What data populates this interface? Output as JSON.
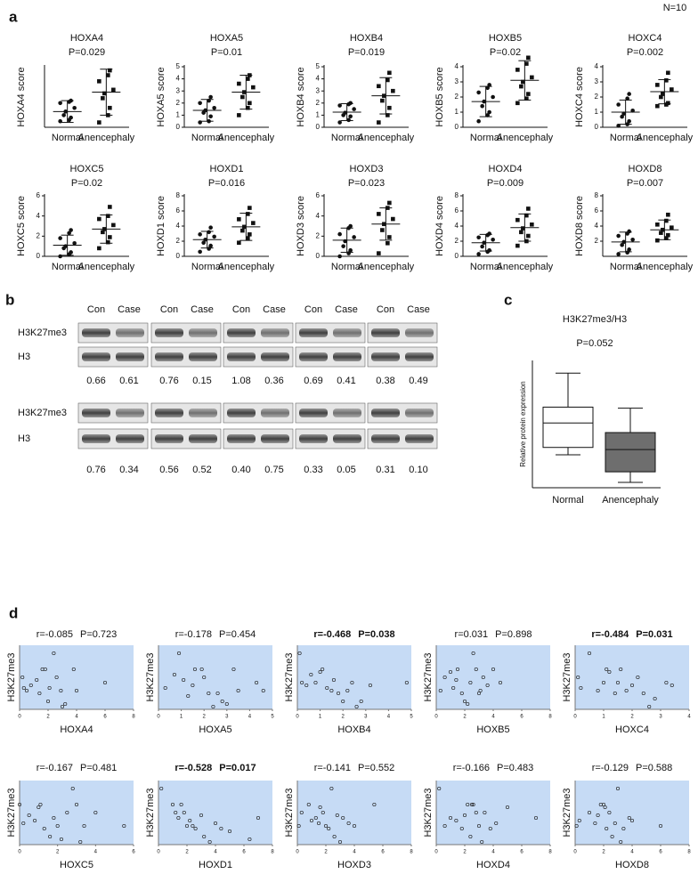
{
  "figure_note": "N=10",
  "panel_labels": [
    "a",
    "b",
    "c",
    "d"
  ],
  "blot": {
    "lane_labels": [
      "Con",
      "Case"
    ],
    "row_labels": [
      "H3K27me3",
      "H3"
    ],
    "rows": [
      [
        "0.66",
        "0.61",
        "0.76",
        "0.15",
        "1.08",
        "0.36",
        "0.69",
        "0.41",
        "0.38",
        "0.49"
      ],
      [
        "0.76",
        "0.34",
        "0.56",
        "0.52",
        "0.40",
        "0.75",
        "0.33",
        "0.05",
        "0.31",
        "0.10"
      ]
    ]
  },
  "chart_data": [
    {
      "type": "dot",
      "title": "HOXA4",
      "subtitle": "P=0.029",
      "y_label": "HOXA4 score",
      "categories": [
        "Normal",
        "Anencephaly"
      ],
      "ylim": [
        0,
        5
      ],
      "markers": [
        "circle",
        "square"
      ],
      "color": "#111111",
      "values": [
        [
          0.5,
          0.6,
          0.8,
          1.0,
          1.3,
          1.6,
          2.0,
          2.1,
          2.2
        ],
        [
          0.4,
          1.0,
          1.6,
          2.4,
          2.8,
          3.1,
          3.8,
          4.3,
          4.7
        ]
      ],
      "means": [
        1.3,
        2.9
      ],
      "sds": [
        0.9,
        1.9
      ]
    },
    {
      "type": "dot",
      "title": "HOXA5",
      "subtitle": "P=0.01",
      "y_label": "HOXA5 score",
      "categories": [
        "Normal",
        "Anencephaly"
      ],
      "ylim": [
        0,
        5
      ],
      "yticks": [
        0,
        1,
        2,
        3,
        4,
        5
      ],
      "markers": [
        "circle",
        "square"
      ],
      "color": "#111111",
      "values": [
        [
          0.4,
          0.5,
          0.9,
          1.2,
          1.4,
          1.6,
          2.0,
          2.2,
          2.5
        ],
        [
          1.0,
          1.6,
          2.0,
          2.5,
          2.9,
          3.3,
          3.6,
          4.0,
          4.3
        ]
      ],
      "means": [
        1.4,
        2.9
      ],
      "sds": [
        0.9,
        1.4
      ]
    },
    {
      "type": "dot",
      "title": "HOXB4",
      "subtitle": "P=0.019",
      "y_label": "HOXB4 score",
      "categories": [
        "Normal",
        "Anencephaly"
      ],
      "ylim": [
        0,
        5
      ],
      "yticks": [
        0,
        1,
        2,
        3,
        4,
        5
      ],
      "markers": [
        "circle",
        "square"
      ],
      "color": "#111111",
      "values": [
        [
          0.4,
          0.6,
          0.9,
          1.0,
          1.2,
          1.5,
          1.8,
          1.9,
          2.0
        ],
        [
          0.4,
          1.0,
          1.6,
          2.2,
          2.6,
          3.0,
          3.4,
          3.9,
          4.5
        ]
      ],
      "means": [
        1.25,
        2.6
      ],
      "sds": [
        0.7,
        1.5
      ]
    },
    {
      "type": "dot",
      "title": "HOXB5",
      "subtitle": "P=0.02",
      "y_label": "HOXB5 score",
      "categories": [
        "Normal",
        "Anencephaly"
      ],
      "ylim": [
        0,
        4
      ],
      "yticks": [
        0,
        1,
        2,
        3,
        4
      ],
      "markers": [
        "circle",
        "square"
      ],
      "color": "#111111",
      "values": [
        [
          0.4,
          0.8,
          1.0,
          1.4,
          1.7,
          2.0,
          2.3,
          2.6,
          2.8
        ],
        [
          1.6,
          1.9,
          2.2,
          2.7,
          3.0,
          3.3,
          3.8,
          4.2,
          4.6
        ]
      ],
      "means": [
        1.7,
        3.1
      ],
      "sds": [
        1.0,
        1.3
      ]
    },
    {
      "type": "dot",
      "title": "HOXC4",
      "subtitle": "P=0.002",
      "y_label": "HOXC4 score",
      "categories": [
        "Normal",
        "Anencephaly"
      ],
      "ylim": [
        0,
        4
      ],
      "yticks": [
        0,
        1,
        2,
        3,
        4
      ],
      "markers": [
        "circle",
        "square"
      ],
      "color": "#111111",
      "values": [
        [
          0.1,
          0.2,
          0.4,
          0.7,
          0.9,
          1.1,
          1.5,
          1.9,
          2.2
        ],
        [
          1.4,
          1.5,
          1.6,
          2.0,
          2.2,
          2.5,
          2.8,
          3.1,
          3.6
        ]
      ],
      "means": [
        1.0,
        2.35
      ],
      "sds": [
        0.8,
        0.8
      ]
    },
    {
      "type": "dot",
      "title": "HOXC5",
      "subtitle": "P=0.02",
      "y_label": "HOXC5 score",
      "categories": [
        "Normal",
        "Anencephaly"
      ],
      "ylim": [
        0,
        6
      ],
      "yticks": [
        0,
        2,
        4,
        6
      ],
      "markers": [
        "circle",
        "square"
      ],
      "color": "#111111",
      "values": [
        [
          0.0,
          0.2,
          0.4,
          0.8,
          1.0,
          1.3,
          1.8,
          2.3,
          2.6
        ],
        [
          0.8,
          1.4,
          1.9,
          2.4,
          2.7,
          3.1,
          3.7,
          4.0,
          4.9
        ]
      ],
      "means": [
        1.1,
        2.7
      ],
      "sds": [
        1.0,
        1.4
      ]
    },
    {
      "type": "dot",
      "title": "HOXD1",
      "subtitle": "P=0.016",
      "y_label": "HOXD1 score",
      "categories": [
        "Normal",
        "Anencephaly"
      ],
      "ylim": [
        0,
        8
      ],
      "yticks": [
        0,
        2,
        4,
        6,
        8
      ],
      "markers": [
        "circle",
        "square"
      ],
      "color": "#111111",
      "values": [
        [
          0.6,
          1.0,
          1.4,
          1.8,
          2.2,
          2.6,
          2.9,
          3.2,
          3.8
        ],
        [
          1.8,
          2.4,
          2.9,
          3.4,
          3.9,
          4.4,
          4.9,
          5.6,
          6.4
        ]
      ],
      "means": [
        2.2,
        3.9
      ],
      "sds": [
        1.1,
        1.8
      ]
    },
    {
      "type": "dot",
      "title": "HOXD3",
      "subtitle": "P=0.023",
      "y_label": "HOXD3 score",
      "categories": [
        "Normal",
        "Anencephaly"
      ],
      "ylim": [
        0,
        6
      ],
      "yticks": [
        0,
        2,
        4,
        6
      ],
      "markers": [
        "circle",
        "square"
      ],
      "color": "#111111",
      "values": [
        [
          0.0,
          0.3,
          0.6,
          1.0,
          1.5,
          1.9,
          2.2,
          2.8,
          3.0
        ],
        [
          0.3,
          1.3,
          1.9,
          2.6,
          3.2,
          3.7,
          4.2,
          4.8,
          5.3
        ]
      ],
      "means": [
        1.6,
        3.2
      ],
      "sds": [
        1.2,
        1.6
      ]
    },
    {
      "type": "dot",
      "title": "HOXD4",
      "subtitle": "P=0.009",
      "y_label": "HOXD4 score",
      "categories": [
        "Normal",
        "Anencephaly"
      ],
      "ylim": [
        0,
        8
      ],
      "yticks": [
        0,
        2,
        4,
        6,
        8
      ],
      "markers": [
        "circle",
        "square"
      ],
      "color": "#111111",
      "values": [
        [
          0.3,
          0.6,
          0.8,
          1.3,
          1.8,
          2.2,
          2.5,
          2.8,
          3.0
        ],
        [
          1.4,
          2.0,
          2.7,
          3.2,
          3.7,
          4.2,
          4.8,
          5.4,
          6.3
        ]
      ],
      "means": [
        1.8,
        3.8
      ],
      "sds": [
        1.1,
        1.8
      ]
    },
    {
      "type": "dot",
      "title": "HOXD8",
      "subtitle": "P=0.007",
      "y_label": "HOXD8 score",
      "categories": [
        "Normal",
        "Anencephaly"
      ],
      "ylim": [
        0,
        8
      ],
      "yticks": [
        2,
        4,
        6,
        8
      ],
      "markers": [
        "circle",
        "square"
      ],
      "color": "#111111",
      "values": [
        [
          0.3,
          0.5,
          0.9,
          1.5,
          1.9,
          2.2,
          2.7,
          3.0,
          3.3
        ],
        [
          2.1,
          2.4,
          2.8,
          3.1,
          3.5,
          3.8,
          4.2,
          4.7,
          5.5
        ]
      ],
      "means": [
        1.9,
        3.5
      ],
      "sds": [
        1.3,
        1.3
      ]
    },
    {
      "type": "box",
      "title": "H3K27me3/H3",
      "subtitle": "P=0.052",
      "y_label": "Relative protein expression",
      "categories": [
        "Normal",
        "Anencephaly"
      ],
      "ylim": [
        0,
        1.2
      ],
      "colors": [
        "#ffffff",
        "#6e6e6e"
      ],
      "min": [
        0.31,
        0.05
      ],
      "q1": [
        0.38,
        0.15
      ],
      "median": [
        0.61,
        0.36
      ],
      "q3": [
        0.76,
        0.52
      ],
      "max": [
        1.08,
        0.75
      ]
    },
    {
      "type": "scatter",
      "r_label": "r=-0.085",
      "p_label": "P=0.723",
      "bold": false,
      "x_label": "HOXA4",
      "y_label": "H3K27me3",
      "xlim": [
        0,
        8
      ],
      "xticks": [
        0,
        2,
        4,
        6,
        8
      ],
      "ylim": [
        0,
        1.2
      ],
      "background": "#c6dbf5",
      "x": [
        0.2,
        0.3,
        0.5,
        0.8,
        1.2,
        1.6,
        1.8,
        2.0,
        2.1,
        2.4,
        2.6,
        3.0,
        3.2,
        3.8,
        4.0,
        6.0,
        1.4,
        2.9
      ],
      "values": [
        0.6,
        0.4,
        0.35,
        0.45,
        0.55,
        0.75,
        0.75,
        0.15,
        0.4,
        1.05,
        0.6,
        0.05,
        0.1,
        0.75,
        0.35,
        0.5,
        0.3,
        0.35
      ]
    },
    {
      "type": "scatter",
      "r_label": "r=-0.178",
      "p_label": "P=0.454",
      "bold": false,
      "x_label": "HOXA5",
      "y_label": "H3K27me3",
      "xlim": [
        0,
        5
      ],
      "xticks": [
        0,
        1,
        2,
        3,
        4,
        5
      ],
      "ylim": [
        0,
        1.2
      ],
      "background": "#c6dbf5",
      "x": [
        0.3,
        0.7,
        0.9,
        1.1,
        1.3,
        1.5,
        1.6,
        1.9,
        2.0,
        2.2,
        2.4,
        2.6,
        2.8,
        3.0,
        3.3,
        3.5,
        4.3,
        4.6
      ],
      "values": [
        0.4,
        0.65,
        1.05,
        0.55,
        0.25,
        0.45,
        0.75,
        0.75,
        0.6,
        0.3,
        0.05,
        0.3,
        0.15,
        0.1,
        0.75,
        0.35,
        0.5,
        0.35
      ]
    },
    {
      "type": "scatter",
      "r_label": "r=-0.468",
      "p_label": "P=0.038",
      "bold": true,
      "x_label": "HOXB4",
      "y_label": "H3K27me3",
      "xlim": [
        0,
        5
      ],
      "xticks": [
        0,
        1,
        2,
        3,
        4,
        5
      ],
      "ylim": [
        0,
        1.2
      ],
      "background": "#c6dbf5",
      "x": [
        0.1,
        0.2,
        0.4,
        0.6,
        0.8,
        1.0,
        1.1,
        1.3,
        1.5,
        1.6,
        1.8,
        2.0,
        2.2,
        2.4,
        2.6,
        2.8,
        3.2,
        4.8
      ],
      "values": [
        1.05,
        0.5,
        0.45,
        0.65,
        0.5,
        0.7,
        0.75,
        0.4,
        0.35,
        0.55,
        0.3,
        0.15,
        0.35,
        0.5,
        0.05,
        0.15,
        0.45,
        0.5
      ]
    },
    {
      "type": "scatter",
      "r_label": "r=0.031",
      "p_label": "P=0.898",
      "bold": false,
      "x_label": "HOXB5",
      "y_label": "H3K27me3",
      "xlim": [
        0,
        8
      ],
      "xticks": [
        0,
        2,
        4,
        6,
        8
      ],
      "ylim": [
        0,
        1.2
      ],
      "background": "#c6dbf5",
      "x": [
        0.3,
        0.6,
        1.0,
        1.2,
        1.5,
        1.8,
        2.0,
        2.2,
        2.4,
        2.6,
        2.8,
        3.0,
        3.3,
        3.6,
        4.0,
        4.5,
        1.4,
        3.1
      ],
      "values": [
        0.35,
        0.6,
        0.7,
        0.4,
        0.75,
        0.3,
        0.15,
        0.1,
        0.5,
        1.05,
        0.75,
        0.3,
        0.6,
        0.45,
        0.75,
        0.5,
        0.55,
        0.35
      ]
    },
    {
      "type": "scatter",
      "r_label": "r=-0.484",
      "p_label": "P=0.031",
      "bold": true,
      "x_label": "HOXC4",
      "y_label": "H3K27me3",
      "xlim": [
        0,
        4
      ],
      "xticks": [
        0,
        1,
        2,
        3,
        4
      ],
      "ylim": [
        0,
        1.2
      ],
      "background": "#c6dbf5",
      "x": [
        0.1,
        0.2,
        0.5,
        0.8,
        1.0,
        1.2,
        1.4,
        1.5,
        1.6,
        1.8,
        2.0,
        2.2,
        2.4,
        2.6,
        2.8,
        3.2,
        3.4,
        1.1
      ],
      "values": [
        0.6,
        0.4,
        1.05,
        0.35,
        0.5,
        0.7,
        0.3,
        0.5,
        0.75,
        0.35,
        0.45,
        0.6,
        0.3,
        0.05,
        0.2,
        0.5,
        0.45,
        0.75
      ]
    },
    {
      "type": "scatter",
      "r_label": "r=-0.167",
      "p_label": "P=0.481",
      "bold": false,
      "x_label": "HOXC5",
      "y_label": "H3K27me3",
      "xlim": [
        0,
        6
      ],
      "xticks": [
        0,
        2,
        4,
        6
      ],
      "ylim": [
        0,
        1.2
      ],
      "background": "#c6dbf5",
      "x": [
        0.0,
        0.2,
        0.5,
        0.8,
        1.0,
        1.3,
        1.6,
        1.8,
        2.0,
        2.2,
        2.5,
        2.8,
        3.0,
        3.2,
        3.4,
        4.0,
        5.5,
        1.1
      ],
      "values": [
        0.75,
        0.4,
        0.55,
        0.45,
        0.7,
        0.3,
        0.15,
        0.5,
        0.35,
        0.1,
        0.6,
        1.05,
        0.75,
        0.05,
        0.35,
        0.6,
        0.35,
        0.75
      ]
    },
    {
      "type": "scatter",
      "r_label": "r=-0.528",
      "p_label": "P=0.017",
      "bold": true,
      "x_label": "HOXD1",
      "y_label": "H3K27me3",
      "xlim": [
        0,
        8
      ],
      "xticks": [
        0,
        2,
        4,
        6,
        8
      ],
      "ylim": [
        0,
        1.2
      ],
      "background": "#c6dbf5",
      "x": [
        0.2,
        1.0,
        1.4,
        1.6,
        1.8,
        2.0,
        2.2,
        2.4,
        2.6,
        3.0,
        3.2,
        3.6,
        4.0,
        4.4,
        5.0,
        6.4,
        7.0,
        1.2
      ],
      "values": [
        1.05,
        0.75,
        0.5,
        0.75,
        0.6,
        0.35,
        0.45,
        0.35,
        0.3,
        0.55,
        0.15,
        0.05,
        0.4,
        0.3,
        0.25,
        0.1,
        0.5,
        0.6
      ]
    },
    {
      "type": "scatter",
      "r_label": "r=-0.141",
      "p_label": "P=0.552",
      "bold": false,
      "x_label": "HOXD3",
      "y_label": "H3K27me3",
      "xlim": [
        0,
        8
      ],
      "xticks": [
        0,
        2,
        4,
        6,
        8
      ],
      "ylim": [
        0,
        1.2
      ],
      "background": "#c6dbf5",
      "x": [
        0.1,
        0.3,
        0.8,
        1.0,
        1.3,
        1.6,
        1.8,
        2.0,
        2.2,
        2.4,
        2.6,
        3.0,
        3.2,
        3.6,
        4.0,
        5.4,
        1.5,
        2.8
      ],
      "values": [
        0.35,
        0.6,
        0.75,
        0.45,
        0.5,
        0.7,
        0.6,
        0.35,
        0.3,
        1.05,
        0.15,
        0.05,
        0.5,
        0.4,
        0.35,
        0.75,
        0.4,
        0.55
      ]
    },
    {
      "type": "scatter",
      "r_label": "r=-0.166",
      "p_label": "P=0.483",
      "bold": false,
      "x_label": "HOXD4",
      "y_label": "H3K27me3",
      "xlim": [
        0,
        8
      ],
      "xticks": [
        0,
        2,
        4,
        6,
        8
      ],
      "ylim": [
        0,
        1.2
      ],
      "background": "#c6dbf5",
      "x": [
        0.2,
        0.6,
        1.0,
        1.4,
        1.8,
        2.0,
        2.2,
        2.4,
        2.6,
        2.8,
        3.0,
        3.2,
        3.4,
        3.8,
        4.2,
        5.0,
        7.0,
        2.5
      ],
      "values": [
        1.05,
        0.35,
        0.5,
        0.45,
        0.3,
        0.55,
        0.75,
        0.15,
        0.75,
        0.6,
        0.35,
        0.05,
        0.6,
        0.3,
        0.4,
        0.7,
        0.5,
        0.75
      ]
    },
    {
      "type": "scatter",
      "r_label": "r=-0.129",
      "p_label": "P=0.588",
      "bold": false,
      "x_label": "HOXD8",
      "y_label": "H3K27me3",
      "xlim": [
        0,
        8
      ],
      "xticks": [
        0,
        2,
        4,
        6,
        8
      ],
      "ylim": [
        0,
        1.2
      ],
      "background": "#c6dbf5",
      "x": [
        0.1,
        0.3,
        1.0,
        1.4,
        1.6,
        1.8,
        2.0,
        2.2,
        2.4,
        2.6,
        2.8,
        3.0,
        3.2,
        3.4,
        3.8,
        4.0,
        6.0,
        2.1
      ],
      "values": [
        0.35,
        0.45,
        0.6,
        0.4,
        0.55,
        0.75,
        0.75,
        0.3,
        0.6,
        0.15,
        0.4,
        1.05,
        0.05,
        0.3,
        0.5,
        0.45,
        0.35,
        0.7
      ]
    }
  ]
}
